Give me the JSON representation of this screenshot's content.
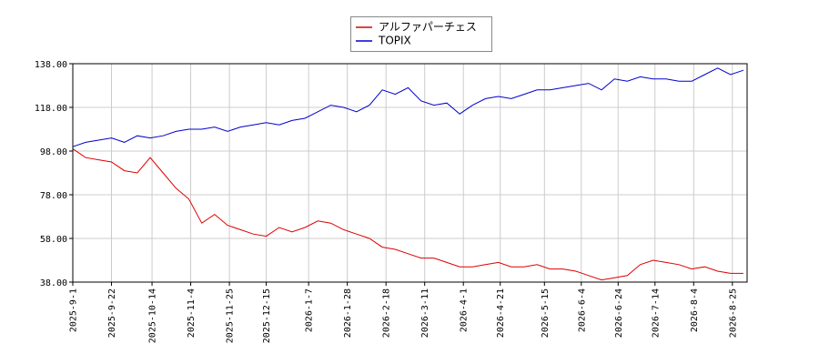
{
  "chart_data": {
    "type": "line",
    "x": [
      "2025-09-01",
      "2025-09-08",
      "2025-09-15",
      "2025-09-22",
      "2025-09-29",
      "2025-10-06",
      "2025-10-13",
      "2025-10-20",
      "2025-10-27",
      "2025-11-03",
      "2025-11-10",
      "2025-11-17",
      "2025-11-24",
      "2025-12-01",
      "2025-12-08",
      "2025-12-15",
      "2025-12-22",
      "2025-12-29",
      "2026-01-05",
      "2026-01-12",
      "2026-01-19",
      "2026-01-26",
      "2026-02-02",
      "2026-02-09",
      "2026-02-16",
      "2026-02-23",
      "2026-03-02",
      "2026-03-09",
      "2026-03-16",
      "2026-03-23",
      "2026-03-30",
      "2026-04-06",
      "2026-04-13",
      "2026-04-20",
      "2026-04-27",
      "2026-05-04",
      "2026-05-11",
      "2026-05-18",
      "2026-05-25",
      "2026-06-01",
      "2026-06-08",
      "2026-06-15",
      "2026-06-22",
      "2026-06-29",
      "2026-07-06",
      "2026-07-13",
      "2026-07-20",
      "2026-07-27",
      "2026-08-03",
      "2026-08-10",
      "2026-08-17",
      "2026-08-24",
      "2026-08-31"
    ],
    "series": [
      {
        "name": "アルファパーチェス",
        "color": "#dd0000",
        "values": [
          99,
          95,
          94,
          93,
          89,
          88,
          95,
          88,
          81,
          76,
          65,
          69,
          64,
          62,
          60,
          59,
          63,
          61,
          63,
          66,
          65,
          62,
          60,
          58,
          54,
          53,
          51,
          49,
          49,
          47,
          45,
          45,
          46,
          47,
          45,
          45,
          46,
          44,
          44,
          43,
          41,
          39,
          40,
          41,
          46,
          48,
          47,
          46,
          44,
          45,
          43,
          42,
          42
        ]
      },
      {
        "name": "TOPIX",
        "color": "#0000cc",
        "values": [
          100,
          102,
          103,
          104,
          102,
          105,
          104,
          105,
          107,
          108,
          108,
          109,
          107,
          109,
          110,
          111,
          110,
          112,
          113,
          116,
          119,
          118,
          116,
          119,
          126,
          124,
          127,
          121,
          119,
          120,
          115,
          119,
          122,
          123,
          122,
          124,
          126,
          126,
          127,
          128,
          129,
          126,
          131,
          130,
          132,
          131,
          131,
          130,
          130,
          133,
          136,
          133,
          135
        ]
      }
    ],
    "xlim": [
      "2025-09-01",
      "2026-09-02"
    ],
    "xticks": [
      "2025-9-1",
      "2025-9-22",
      "2025-10-14",
      "2025-11-4",
      "2025-11-25",
      "2025-12-15",
      "2026-1-7",
      "2026-1-28",
      "2026-2-18",
      "2026-3-11",
      "2026-4-1",
      "2026-4-21",
      "2026-5-15",
      "2026-6-4",
      "2026-6-24",
      "2026-7-14",
      "2026-8-4",
      "2026-8-25"
    ],
    "ylim": [
      38,
      138
    ],
    "yticks": [
      {
        "value": 38,
        "label": "38.00"
      },
      {
        "value": 58,
        "label": "58.00"
      },
      {
        "value": 78,
        "label": "78.00"
      },
      {
        "value": 98,
        "label": "98.00"
      },
      {
        "value": 118,
        "label": "118.00"
      },
      {
        "value": 138,
        "label": "138.00"
      }
    ],
    "grid": true,
    "legend": "top"
  }
}
